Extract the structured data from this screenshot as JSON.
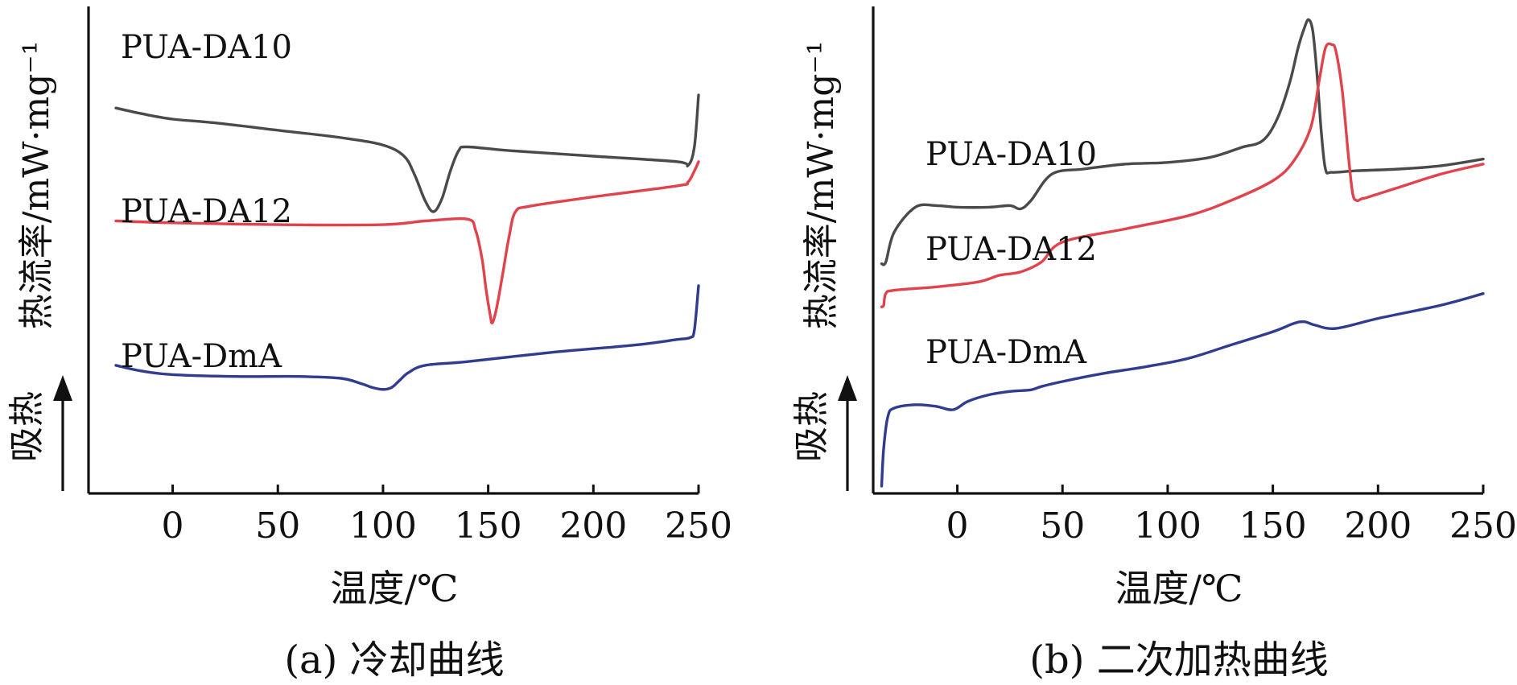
{
  "panels": [
    {
      "caption": "(a) 冷却曲线",
      "endo_label": "吸热"
    },
    {
      "caption": "(b) 二次加热曲线",
      "endo_label": "吸热"
    }
  ],
  "chart_data": [
    {
      "type": "line",
      "title": "",
      "xlabel": "温度/℃",
      "ylabel": "热流率/mW·mg⁻¹",
      "xlim": [
        -40,
        250
      ],
      "xticks": [
        0,
        50,
        100,
        150,
        200,
        250
      ],
      "yticks": [],
      "grid": false,
      "series": [
        {
          "name": "PUA-DA10",
          "color": "#4a4a4a",
          "x": [
            -27,
            -15,
            0,
            20,
            50,
            80,
            100,
            110,
            115,
            120,
            124,
            128,
            132,
            136,
            140,
            160,
            200,
            240,
            245,
            248,
            250
          ],
          "y": [
            8.6,
            8.3,
            8.0,
            7.8,
            7.4,
            7.0,
            6.6,
            6.0,
            5.0,
            3.6,
            3.0,
            3.7,
            5.2,
            6.3,
            6.5,
            6.3,
            6.0,
            5.7,
            5.5,
            6.5,
            9.3
          ]
        },
        {
          "name": "PUA-DA12",
          "color": "#e0434c",
          "x": [
            -27,
            0,
            50,
            100,
            120,
            140,
            144,
            147,
            149,
            151,
            152,
            154,
            157,
            160,
            163,
            170,
            200,
            240,
            245,
            248,
            250
          ],
          "y": [
            2.5,
            2.4,
            2.3,
            2.3,
            2.5,
            2.6,
            2.0,
            0.5,
            -1.2,
            -2.6,
            -3.0,
            -2.2,
            -0.3,
            1.7,
            3.0,
            3.3,
            3.8,
            4.4,
            4.6,
            5.2,
            5.7
          ],
          "note_unused": null
        },
        {
          "name": "PUA-DmA",
          "color": "#2f3c8f",
          "x": [
            -27,
            -15,
            0,
            30,
            60,
            80,
            90,
            95,
            100,
            104,
            108,
            112,
            120,
            140,
            180,
            220,
            240,
            246,
            248,
            250
          ],
          "y": [
            -5.3,
            -5.6,
            -5.8,
            -5.9,
            -5.9,
            -6.0,
            -6.3,
            -6.5,
            -6.6,
            -6.5,
            -6.1,
            -5.7,
            -5.3,
            -5.1,
            -4.6,
            -4.2,
            -3.9,
            -3.8,
            -3.4,
            -1.0
          ]
        }
      ],
      "annotations": [
        "PUA-DA10",
        "PUA-DA12",
        "PUA-DmA"
      ]
    },
    {
      "type": "line",
      "title": "",
      "xlabel": "温度/℃",
      "ylabel": "热流率/mW·mg⁻¹",
      "xlim": [
        -40,
        250
      ],
      "xticks": [
        0,
        50,
        100,
        150,
        200,
        250
      ],
      "yticks": [],
      "grid": false,
      "series": [
        {
          "name": "PUA-DA10",
          "color": "#4a4a4a",
          "x": [
            -36,
            -34,
            -30,
            -20,
            -10,
            0,
            15,
            25,
            30,
            35,
            45,
            60,
            80,
            100,
            120,
            135,
            145,
            152,
            158,
            162,
            165,
            167,
            169,
            171,
            173,
            175,
            178,
            190,
            210,
            230,
            250
          ],
          "y": [
            -1.4,
            -1.3,
            0.5,
            2.0,
            2.1,
            2.0,
            2.0,
            2.1,
            1.9,
            2.4,
            4.0,
            4.3,
            4.6,
            4.7,
            5.0,
            5.6,
            6.0,
            7.3,
            9.5,
            11.6,
            12.8,
            13.3,
            12.6,
            10.0,
            6.6,
            4.3,
            4.1,
            4.2,
            4.3,
            4.5,
            4.9
          ]
        },
        {
          "name": "PUA-DA12",
          "color": "#e0434c",
          "x": [
            -36,
            -35,
            -34,
            -30,
            -10,
            10,
            20,
            30,
            40,
            50,
            80,
            110,
            130,
            150,
            160,
            168,
            172,
            175,
            178,
            180,
            183,
            186,
            188,
            190,
            192,
            195,
            210,
            230,
            250
          ],
          "y": [
            -4.0,
            -3.9,
            -3.2,
            -3.0,
            -2.8,
            -2.5,
            -2.1,
            -1.9,
            -1.3,
            -0.1,
            0.7,
            1.5,
            2.4,
            3.6,
            4.8,
            6.8,
            9.6,
            11.6,
            11.8,
            11.4,
            9.0,
            5.0,
            2.8,
            2.4,
            2.5,
            2.6,
            3.2,
            4.0,
            4.6
          ]
        },
        {
          "name": "PUA-DmA",
          "color": "#2f3c8f",
          "x": [
            -36,
            -35,
            -33,
            -30,
            -20,
            -10,
            -2,
            5,
            15,
            25,
            35,
            40,
            50,
            70,
            90,
            110,
            130,
            150,
            160,
            165,
            170,
            180,
            200,
            230,
            250
          ],
          "y": [
            -14.8,
            -12.5,
            -10.6,
            -10.1,
            -9.9,
            -10.0,
            -10.2,
            -9.7,
            -9.3,
            -9.1,
            -9.0,
            -8.8,
            -8.5,
            -8.0,
            -7.6,
            -7.1,
            -6.3,
            -5.5,
            -5.0,
            -4.9,
            -5.1,
            -5.3,
            -4.7,
            -3.9,
            -3.2
          ]
        }
      ],
      "annotations": [
        "PUA-DA10",
        "PUA-DA12",
        "PUA-DmA"
      ]
    }
  ]
}
